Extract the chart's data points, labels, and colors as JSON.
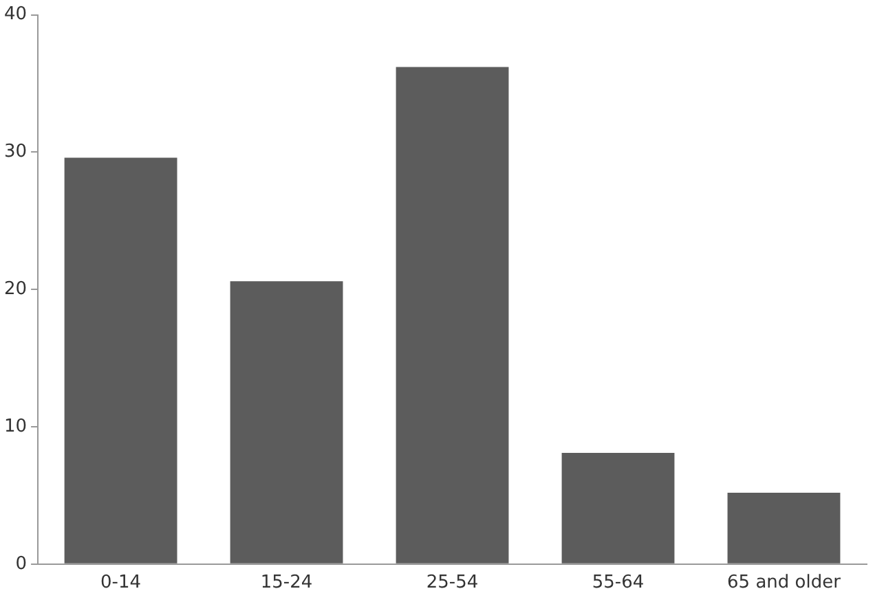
{
  "chart_data": {
    "type": "bar",
    "categories": [
      "0-14",
      "15-24",
      "25-54",
      "55-64",
      "65 and older"
    ],
    "values": [
      29.6,
      20.6,
      36.2,
      8.1,
      5.2
    ],
    "color": "#5c5c5c",
    "ylim": [
      0,
      40
    ],
    "yticks": [
      0,
      10,
      20,
      30,
      40
    ],
    "grid": false
  }
}
